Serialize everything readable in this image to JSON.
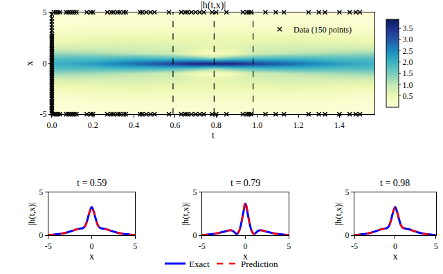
{
  "chart_data": [
    {
      "type": "heatmap",
      "title": "|h(t,x)|",
      "x_label": "t",
      "y_label": "x",
      "xlim": [
        0,
        1.57
      ],
      "ylim": [
        -5,
        5
      ],
      "xticks": [
        {
          "value": 0,
          "label": "0.0"
        },
        0.2,
        0.4,
        0.6,
        0.8,
        {
          "value": 1,
          "label": "1.0"
        },
        1.2,
        1.4
      ],
      "yticks": [
        -5,
        0,
        5
      ],
      "x": [
        0,
        0.2,
        0.4,
        0.59,
        0.7,
        0.79,
        0.88,
        0.98,
        1.18,
        1.38,
        1.57
      ],
      "y": [
        -5,
        -4,
        -3,
        -2,
        -1.5,
        -1,
        -0.5,
        0,
        0.5,
        1,
        1.5,
        2,
        3,
        4,
        5
      ],
      "z": [
        [
          0.03,
          0.04,
          0.05,
          0.05,
          0.05,
          0.05,
          0.05,
          0.05,
          0.05,
          0.04,
          0.03
        ],
        [
          0.07,
          0.1,
          0.12,
          0.13,
          0.13,
          0.13,
          0.13,
          0.13,
          0.12,
          0.1,
          0.07
        ],
        [
          0.2,
          0.25,
          0.3,
          0.3,
          0.3,
          0.3,
          0.3,
          0.3,
          0.3,
          0.25,
          0.2
        ],
        [
          0.53,
          0.6,
          0.65,
          0.6,
          0.55,
          0.55,
          0.55,
          0.6,
          0.65,
          0.6,
          0.53
        ],
        [
          0.85,
          0.85,
          0.8,
          0.75,
          0.6,
          0.55,
          0.6,
          0.75,
          0.8,
          0.85,
          0.85
        ],
        [
          1.3,
          1.2,
          1.05,
          0.85,
          0.4,
          0.15,
          0.4,
          0.85,
          1.05,
          1.2,
          1.3
        ],
        [
          1.77,
          1.8,
          1.9,
          1.8,
          1.6,
          1.3,
          1.6,
          1.8,
          1.9,
          1.8,
          1.77
        ],
        [
          2.0,
          2.3,
          2.8,
          3.3,
          3.7,
          3.7,
          3.7,
          3.3,
          2.8,
          2.3,
          2.0
        ],
        [
          1.77,
          1.8,
          1.9,
          1.8,
          1.6,
          1.3,
          1.6,
          1.8,
          1.9,
          1.8,
          1.77
        ],
        [
          1.3,
          1.2,
          1.05,
          0.85,
          0.4,
          0.15,
          0.4,
          0.85,
          1.05,
          1.2,
          1.3
        ],
        [
          0.85,
          0.85,
          0.8,
          0.75,
          0.6,
          0.55,
          0.6,
          0.75,
          0.8,
          0.85,
          0.85
        ],
        [
          0.53,
          0.6,
          0.65,
          0.6,
          0.55,
          0.55,
          0.55,
          0.6,
          0.65,
          0.6,
          0.53
        ],
        [
          0.2,
          0.25,
          0.3,
          0.3,
          0.3,
          0.3,
          0.3,
          0.3,
          0.3,
          0.25,
          0.2
        ],
        [
          0.07,
          0.1,
          0.12,
          0.13,
          0.13,
          0.13,
          0.13,
          0.13,
          0.12,
          0.1,
          0.07
        ],
        [
          0.03,
          0.04,
          0.05,
          0.05,
          0.05,
          0.05,
          0.05,
          0.05,
          0.05,
          0.04,
          0.03
        ]
      ],
      "colorbar": {
        "range": [
          0,
          3.9
        ],
        "ticks": [
          0.5,
          {
            "value": 1,
            "label": "1.0"
          },
          1.5,
          {
            "value": 2,
            "label": "2.0"
          },
          2.5,
          {
            "value": 3,
            "label": "3.0"
          },
          3.5
        ]
      },
      "highlight_t": [
        0.59,
        0.79,
        0.98
      ],
      "legend": "upper right",
      "series": [
        {
          "name": "Data (150 points)",
          "type": "scatter",
          "marker": "x",
          "color": "black",
          "x": [
            0,
            0,
            0,
            0,
            0,
            0,
            0,
            0,
            0,
            0,
            0,
            0,
            0,
            0,
            0,
            0,
            0,
            0,
            0,
            0,
            0,
            0,
            0,
            0,
            0,
            0,
            0,
            0,
            0,
            0,
            0,
            0,
            0,
            0,
            0,
            0,
            0,
            0,
            0,
            0,
            0,
            0,
            0,
            0,
            0,
            0,
            0,
            0,
            0,
            0,
            0.01,
            0.02,
            0.03,
            0.04,
            0.07,
            0.08,
            0.09,
            0.1,
            0.11,
            0.12,
            0.17,
            0.19,
            0.2,
            0.27,
            0.29,
            0.3,
            0.32,
            0.33,
            0.35,
            0.36,
            0.43,
            0.44,
            0.46,
            0.48,
            0.5,
            0.57,
            0.63,
            0.65,
            0.66,
            0.68,
            0.7,
            0.72,
            0.74,
            0.78,
            0.8,
            0.85,
            0.93,
            0.95,
            0.96,
            0.97,
            1.04,
            1.09,
            1.13,
            1.25,
            1.3,
            1.33,
            1.4,
            1.45,
            1.48,
            1.5,
            0.01,
            0.02,
            0.03,
            0.04,
            0.07,
            0.08,
            0.09,
            0.1,
            0.11,
            0.12,
            0.17,
            0.19,
            0.2,
            0.27,
            0.29,
            0.3,
            0.32,
            0.33,
            0.35,
            0.36,
            0.43,
            0.44,
            0.46,
            0.48,
            0.5,
            0.57,
            0.63,
            0.65,
            0.66,
            0.68,
            0.7,
            0.72,
            0.74,
            0.78,
            0.8,
            0.85,
            0.93,
            0.95,
            0.96,
            0.97,
            1.04,
            1.09,
            1.13,
            1.25,
            1.3,
            1.33,
            1.4,
            1.45,
            1.48,
            1.5
          ],
          "y": [
            -4.9,
            -4.7,
            -4.6,
            -4.4,
            -4.2,
            -4.1,
            -3.9,
            -3.7,
            -3.5,
            -3.4,
            -3.2,
            -3.0,
            -2.8,
            -2.7,
            -2.5,
            -2.3,
            -2.1,
            -1.9,
            -1.8,
            -1.6,
            -1.4,
            -1.2,
            -1.0,
            -0.9,
            -0.7,
            -0.5,
            -0.3,
            -0.1,
            0.1,
            0.3,
            0.5,
            0.6,
            0.8,
            1.0,
            1.2,
            1.4,
            1.5,
            1.7,
            1.9,
            2.1,
            2.3,
            2.5,
            2.7,
            2.9,
            3.2,
            3.5,
            3.8,
            4.1,
            4.4,
            4.8,
            5,
            5,
            5,
            5,
            5,
            5,
            5,
            5,
            5,
            5,
            5,
            5,
            5,
            5,
            5,
            5,
            5,
            5,
            5,
            5,
            5,
            5,
            5,
            5,
            5,
            5,
            5,
            5,
            5,
            5,
            5,
            5,
            5,
            5,
            5,
            5,
            5,
            5,
            5,
            5,
            5,
            5,
            5,
            5,
            5,
            5,
            5,
            5,
            5,
            5,
            -5,
            -5,
            -5,
            -5,
            -5,
            -5,
            -5,
            -5,
            -5,
            -5,
            -5,
            -5,
            -5,
            -5,
            -5,
            -5,
            -5,
            -5,
            -5,
            -5,
            -5,
            -5,
            -5,
            -5,
            -5,
            -5,
            -5,
            -5,
            -5,
            -5,
            -5,
            -5,
            -5,
            -5,
            -5,
            -5,
            -5,
            -5,
            -5,
            -5,
            -5,
            -5,
            -5,
            -5,
            -5,
            -5,
            -5,
            -5,
            -5,
            -5
          ]
        }
      ]
    },
    {
      "type": "line",
      "title": "t = 0.59",
      "x_label": "x",
      "y_label": "|h(t,x)|",
      "xlim": [
        -5,
        5
      ],
      "ylim": [
        0,
        5
      ],
      "xticks": [
        -5,
        0,
        5
      ],
      "yticks": [
        0,
        5
      ],
      "legend": "lower center",
      "x": [
        -5,
        -4.5,
        -4,
        -3.5,
        -3,
        -2.5,
        -2,
        -1.75,
        -1.5,
        -1.25,
        -1,
        -0.75,
        -0.5,
        -0.25,
        0,
        0.25,
        0.5,
        0.75,
        1,
        1.25,
        1.5,
        1.75,
        2,
        2.5,
        3,
        3.5,
        4,
        4.5,
        5
      ],
      "series": [
        {
          "name": "Exact",
          "color": "blue",
          "line_style": "solid",
          "values": [
            0.05,
            0.08,
            0.13,
            0.2,
            0.3,
            0.45,
            0.6,
            0.7,
            0.75,
            0.8,
            0.85,
            1.1,
            1.8,
            2.7,
            3.3,
            2.7,
            1.8,
            1.1,
            0.85,
            0.8,
            0.75,
            0.7,
            0.6,
            0.45,
            0.3,
            0.2,
            0.13,
            0.08,
            0.05
          ]
        },
        {
          "name": "Prediction",
          "color": "red",
          "line_style": "dashed",
          "values": [
            0.05,
            0.08,
            0.13,
            0.2,
            0.3,
            0.45,
            0.6,
            0.7,
            0.75,
            0.8,
            0.86,
            1.1,
            1.8,
            2.7,
            3.35,
            2.7,
            1.8,
            1.1,
            0.86,
            0.8,
            0.75,
            0.7,
            0.6,
            0.45,
            0.3,
            0.2,
            0.13,
            0.08,
            0.05
          ]
        }
      ]
    },
    {
      "type": "line",
      "title": "t = 0.79",
      "x_label": "x",
      "y_label": "|h(t,x)|",
      "xlim": [
        -5,
        5
      ],
      "ylim": [
        0,
        5
      ],
      "xticks": [
        -5,
        0,
        5
      ],
      "yticks": [
        0,
        5
      ],
      "legend": "lower center",
      "x": [
        -5,
        -4.5,
        -4,
        -3.5,
        -3,
        -2.5,
        -2,
        -1.75,
        -1.5,
        -1.25,
        -1,
        -0.75,
        -0.5,
        -0.25,
        0,
        0.25,
        0.5,
        0.75,
        1,
        1.25,
        1.5,
        1.75,
        2,
        2.5,
        3,
        3.5,
        4,
        4.5,
        5
      ],
      "series": [
        {
          "name": "Exact",
          "color": "blue",
          "line_style": "solid",
          "values": [
            0.05,
            0.08,
            0.13,
            0.2,
            0.3,
            0.42,
            0.55,
            0.6,
            0.55,
            0.35,
            0.15,
            0.45,
            1.3,
            2.6,
            3.7,
            2.6,
            1.3,
            0.45,
            0.15,
            0.35,
            0.55,
            0.6,
            0.55,
            0.42,
            0.3,
            0.2,
            0.13,
            0.08,
            0.05
          ]
        },
        {
          "name": "Prediction",
          "color": "red",
          "line_style": "dashed",
          "values": [
            0.05,
            0.08,
            0.13,
            0.2,
            0.3,
            0.42,
            0.55,
            0.6,
            0.55,
            0.36,
            0.16,
            0.47,
            1.35,
            2.75,
            3.95,
            2.75,
            1.35,
            0.47,
            0.16,
            0.36,
            0.55,
            0.6,
            0.55,
            0.42,
            0.3,
            0.2,
            0.13,
            0.08,
            0.05
          ]
        }
      ]
    },
    {
      "type": "line",
      "title": "t = 0.98",
      "x_label": "x",
      "y_label": "|h(t,x)|",
      "xlim": [
        -5,
        5
      ],
      "ylim": [
        0,
        5
      ],
      "xticks": [
        -5,
        0,
        5
      ],
      "yticks": [
        0,
        5
      ],
      "legend": "lower center",
      "x": [
        -5,
        -4.5,
        -4,
        -3.5,
        -3,
        -2.5,
        -2,
        -1.75,
        -1.5,
        -1.25,
        -1,
        -0.75,
        -0.5,
        -0.25,
        0,
        0.25,
        0.5,
        0.75,
        1,
        1.25,
        1.5,
        1.75,
        2,
        2.5,
        3,
        3.5,
        4,
        4.5,
        5
      ],
      "series": [
        {
          "name": "Exact",
          "color": "blue",
          "line_style": "solid",
          "values": [
            0.05,
            0.08,
            0.13,
            0.2,
            0.3,
            0.45,
            0.6,
            0.7,
            0.75,
            0.8,
            0.85,
            1.1,
            1.8,
            2.7,
            3.3,
            2.7,
            1.8,
            1.1,
            0.85,
            0.8,
            0.75,
            0.7,
            0.6,
            0.45,
            0.3,
            0.2,
            0.13,
            0.08,
            0.05
          ]
        },
        {
          "name": "Prediction",
          "color": "red",
          "line_style": "dashed",
          "values": [
            0.05,
            0.08,
            0.13,
            0.2,
            0.3,
            0.45,
            0.6,
            0.7,
            0.75,
            0.8,
            0.85,
            1.1,
            1.8,
            2.7,
            3.32,
            2.7,
            1.8,
            1.1,
            0.85,
            0.8,
            0.75,
            0.7,
            0.6,
            0.45,
            0.3,
            0.2,
            0.13,
            0.08,
            0.05
          ]
        }
      ]
    }
  ]
}
